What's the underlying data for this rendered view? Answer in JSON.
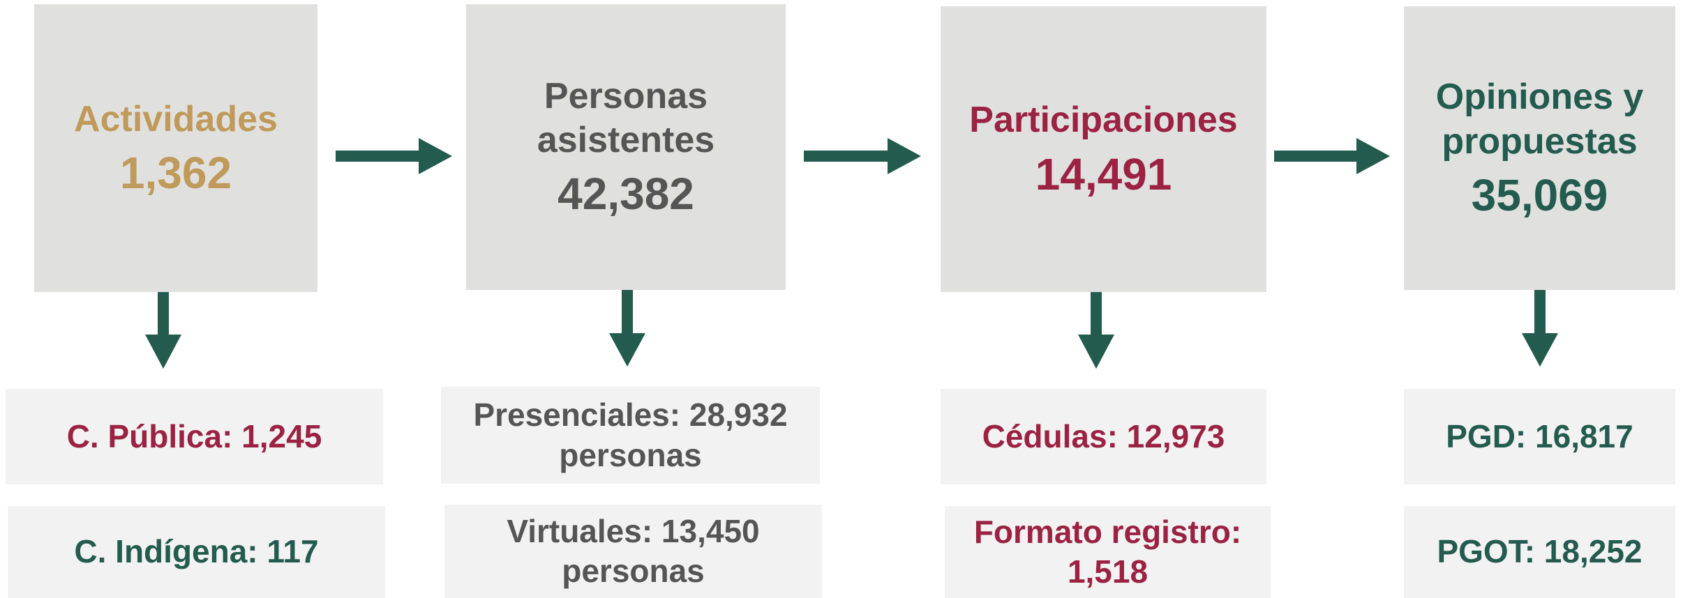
{
  "columns": [
    {
      "title": "Actividades",
      "value": "1,362",
      "color": "#c09a5b",
      "subs": [
        {
          "text": "C. Pública: 1,245",
          "color": "#9b2242"
        },
        {
          "text": "C. Indígena: 117",
          "color": "#235b4e"
        }
      ]
    },
    {
      "title": "Personas asistentes",
      "value": "42,382",
      "color": "#555555",
      "subs": [
        {
          "text": "Presenciales: 28,932 personas",
          "color": "#555555"
        },
        {
          "text": "Virtuales: 13,450 personas",
          "color": "#555555"
        }
      ]
    },
    {
      "title": "Participaciones",
      "value": "14,491",
      "color": "#9b2242",
      "subs": [
        {
          "text": "Cédulas: 12,973",
          "color": "#9b2242"
        },
        {
          "text": "Formato registro: 1,518",
          "color": "#9b2242"
        }
      ]
    },
    {
      "title": "Opiniones y propuestas",
      "value": "35,069",
      "color": "#235b4e",
      "subs": [
        {
          "text": "PGD: 16,817",
          "color": "#235b4e"
        },
        {
          "text": "PGOT: 18,252",
          "color": "#235b4e"
        }
      ]
    }
  ]
}
